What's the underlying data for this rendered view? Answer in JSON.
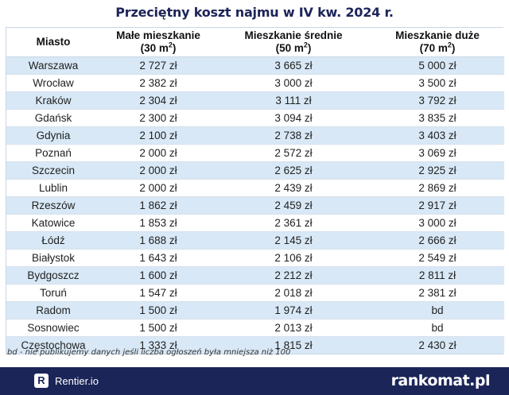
{
  "title": "Przeciętny koszt najmu w IV kw. 2024 r.",
  "table": {
    "headers": {
      "city": "Miasto",
      "small_line1": "Małe mieszkanie",
      "small_line2_pre": "(30 m",
      "small_sup": "2",
      "small_line2_post": ")",
      "medium_line1": "Mieszkanie średnie",
      "medium_line2_pre": "(50 m",
      "medium_sup": "2",
      "medium_line2_post": ")",
      "large_line1": "Mieszkanie duże",
      "large_line2_pre": "(70 m",
      "large_sup": "2",
      "large_line2_post": ")"
    },
    "rows": [
      [
        "Warszawa",
        "2 727 zł",
        "3 665 zł",
        "5 000 zł"
      ],
      [
        "Wrocław",
        "2 382 zł",
        "3 000 zł",
        "3 500 zł"
      ],
      [
        "Kraków",
        "2 304 zł",
        "3 111 zł",
        "3 792 zł"
      ],
      [
        "Gdańsk",
        "2 300 zł",
        "3 094 zł",
        "3 835 zł"
      ],
      [
        "Gdynia",
        "2 100 zł",
        "2 738 zł",
        "3 403 zł"
      ],
      [
        "Poznań",
        "2 000 zł",
        "2 572 zł",
        "3 069 zł"
      ],
      [
        "Szczecin",
        "2 000 zł",
        "2 625 zł",
        "2 925 zł"
      ],
      [
        "Lublin",
        "2 000 zł",
        "2 439 zł",
        "2 869 zł"
      ],
      [
        "Rzeszów",
        "1 862 zł",
        "2 459 zł",
        "2 917 zł"
      ],
      [
        "Katowice",
        "1 853 zł",
        "2 361 zł",
        "3 000 zł"
      ],
      [
        "Łódź",
        "1 688 zł",
        "2 145 zł",
        "2 666 zł"
      ],
      [
        "Białystok",
        "1 643 zł",
        "2 106 zł",
        "2 549 zł"
      ],
      [
        "Bydgoszcz",
        "1 600 zł",
        "2 212 zł",
        "2 811 zł"
      ],
      [
        "Toruń",
        "1 547 zł",
        "2 018 zł",
        "2 381 zł"
      ],
      [
        "Radom",
        "1 500 zł",
        "1 974 zł",
        "bd"
      ],
      [
        "Sosnowiec",
        "1 500 zł",
        "2 013 zł",
        "bd"
      ],
      [
        "Częstochowa",
        "1 333 zł",
        "1 815 zł",
        "2 430 zł"
      ]
    ]
  },
  "footnote": "bd - nie publikujemy danych jeśli liczba ogłoszeń była mniejsza niż 100",
  "footer": {
    "rentier_logo_letter": "R",
    "rentier_text": "Rentier.io",
    "rankomat_text": "rankomat.pl"
  },
  "colors": {
    "row_stripe": "#d8e8f6",
    "footer_bg": "#1b2558",
    "title": "#1c2458"
  }
}
